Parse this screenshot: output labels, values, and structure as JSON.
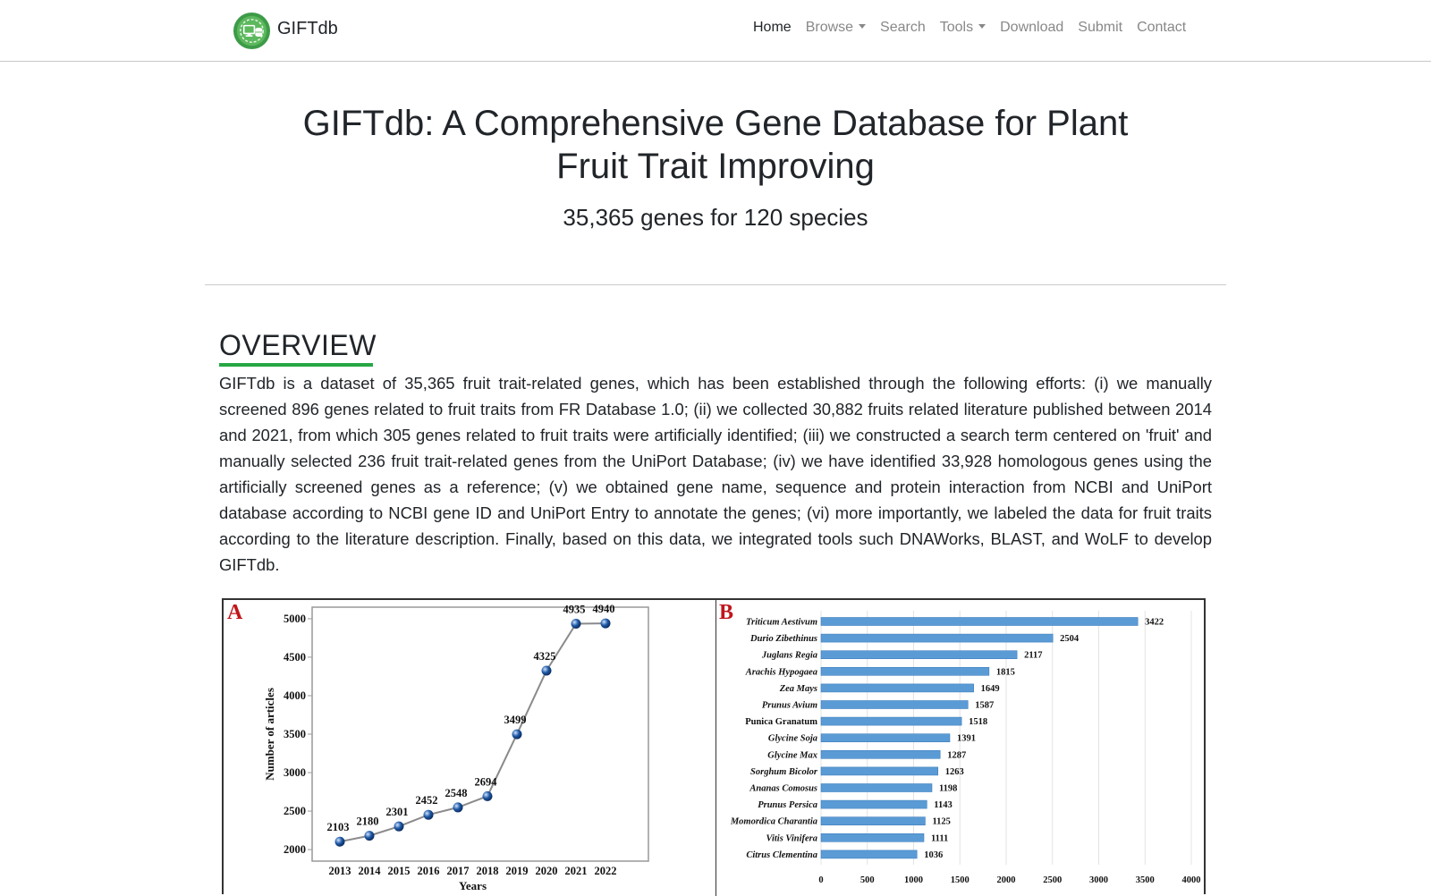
{
  "navbar": {
    "brand": "GIFTdb",
    "items": [
      {
        "label": "Home",
        "active": true,
        "dropdown": false
      },
      {
        "label": "Browse",
        "active": false,
        "dropdown": true
      },
      {
        "label": "Search",
        "active": false,
        "dropdown": false
      },
      {
        "label": "Tools",
        "active": false,
        "dropdown": true
      },
      {
        "label": "Download",
        "active": false,
        "dropdown": false
      },
      {
        "label": "Submit",
        "active": false,
        "dropdown": false
      },
      {
        "label": "Contact",
        "active": false,
        "dropdown": false
      }
    ]
  },
  "hero": {
    "title": "GIFTdb: A Comprehensive Gene Database for Plant Fruit Trait Improving",
    "subtitle": "35,365 genes for 120 species"
  },
  "overview": {
    "heading": "OVERVIEW",
    "text": "GIFTdb is a dataset of 35,365 fruit trait-related genes, which has been established through the following efforts: (i) we manually screened 896 genes related to fruit traits from FR Database 1.0; (ii) we collected 30,882 fruits related literature published between 2014 and 2021, from which 305 genes related to fruit traits were artificially identified; (iii) we constructed a search term centered on 'fruit' and manually selected 236 fruit trait-related genes from the UniPort Database; (iv) we have identified 33,928 homologous genes using the artificially screened genes as a reference; (v) we obtained gene name, sequence and protein interaction from NCBI and UniPort database according to NCBI gene ID and UniPort Entry to annotate the genes; (vi) more importantly, we labeled the data for fruit traits according to the literature description. Finally, based on this data, we integrated tools such DNAWorks, BLAST, and WoLF to develop GIFTdb."
  },
  "colors": {
    "accent_green": "#28a745",
    "panel_label_red": "#c0161b",
    "bar_blue": "#5b9bd5",
    "point_blue": "#1f5aa6"
  },
  "chart_data": [
    {
      "type": "line",
      "panel_label": "A",
      "x": [
        2013,
        2014,
        2015,
        2016,
        2017,
        2018,
        2019,
        2020,
        2021,
        2022
      ],
      "y": [
        2103,
        2180,
        2301,
        2452,
        2548,
        2694,
        3499,
        4325,
        4935,
        4940
      ],
      "xlabel": "Years",
      "ylabel": "Number of articles",
      "yticks": [
        2000,
        2500,
        3000,
        3500,
        4000,
        4500,
        5000
      ],
      "ylim": [
        1850,
        5150
      ],
      "grid": false
    },
    {
      "type": "bar",
      "orientation": "horizontal",
      "panel_label": "B",
      "categories": [
        "Triticum Aestivum",
        "Durio Zibethinus",
        "Juglans Regia",
        "Arachis Hypogaea",
        "Zea Mays",
        "Prunus Avium",
        "Punica Granatum",
        "Glycine Soja",
        "Glycine Max",
        "Sorghum Bicolor",
        "Ananas Comosus",
        "Prunus Persica",
        "Momordica Charantia",
        "Vitis Vinifera",
        "Citrus Clementina"
      ],
      "values": [
        3422,
        2504,
        2117,
        1815,
        1649,
        1587,
        1518,
        1391,
        1287,
        1263,
        1198,
        1143,
        1125,
        1111,
        1036
      ],
      "xticks": [
        0,
        500,
        1000,
        1500,
        2000,
        2500,
        3000,
        3500,
        4000
      ],
      "xlim": [
        0,
        4000
      ],
      "grid": true
    }
  ]
}
